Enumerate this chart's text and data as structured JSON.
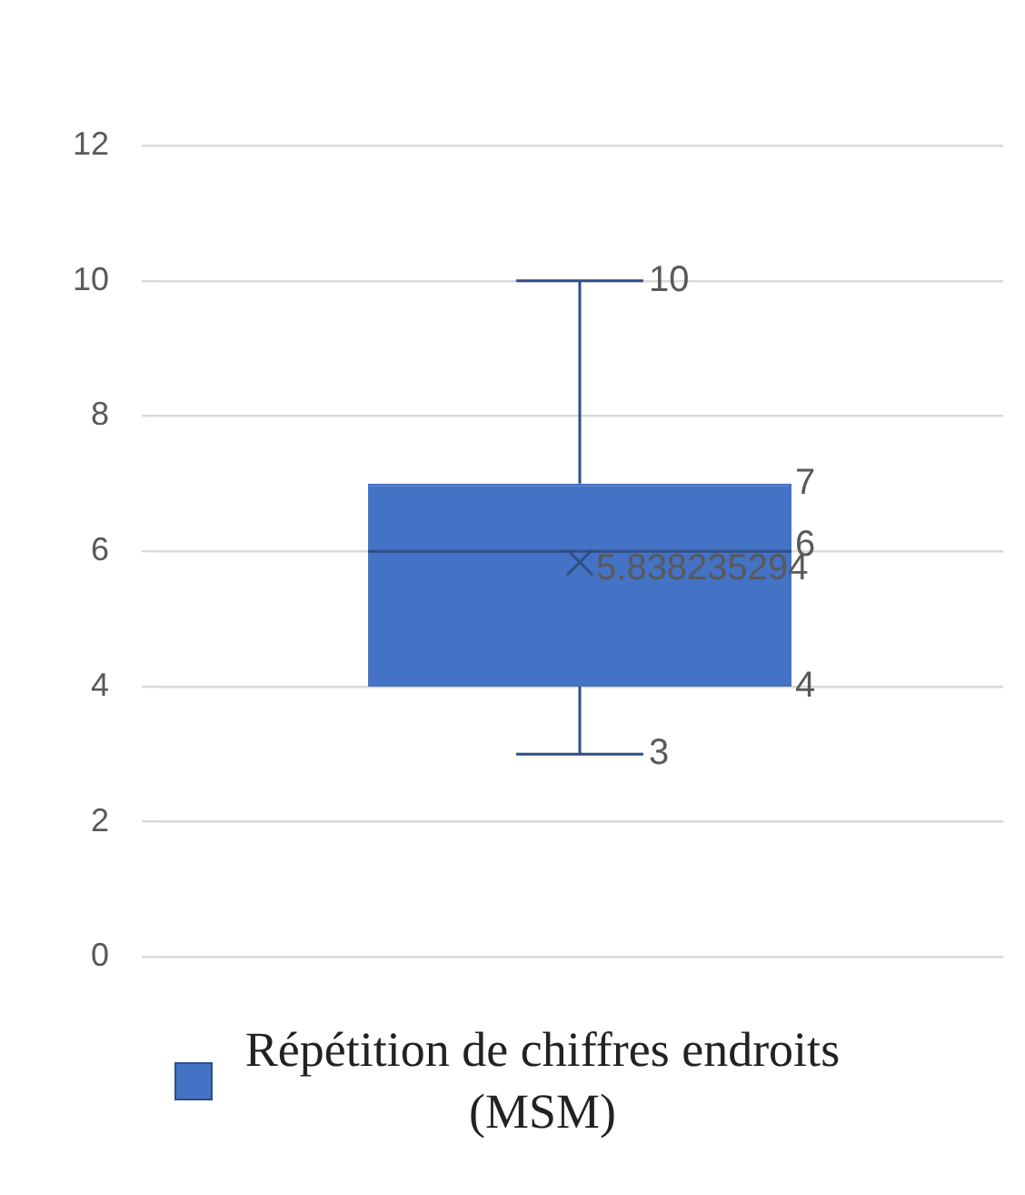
{
  "chart_data": {
    "type": "box",
    "categories": [
      null
    ],
    "series": [
      {
        "name": "Répétition de chiffres endroits (MSM)",
        "color": "#4472c4",
        "boxes": [
          {
            "low": 3,
            "q1": 4,
            "median": 6,
            "q3": 7,
            "high": 10,
            "mean": 5.838235294
          }
        ]
      }
    ],
    "annotations": [
      "10",
      "7",
      "6",
      "5.838235294",
      "4",
      "3"
    ],
    "ylim": [
      0,
      12
    ],
    "yticks": [
      0,
      2,
      4,
      6,
      8,
      10,
      12
    ],
    "grid": "y",
    "legend": "bottom",
    "marker": "cross",
    "tick_labels": "y"
  }
}
